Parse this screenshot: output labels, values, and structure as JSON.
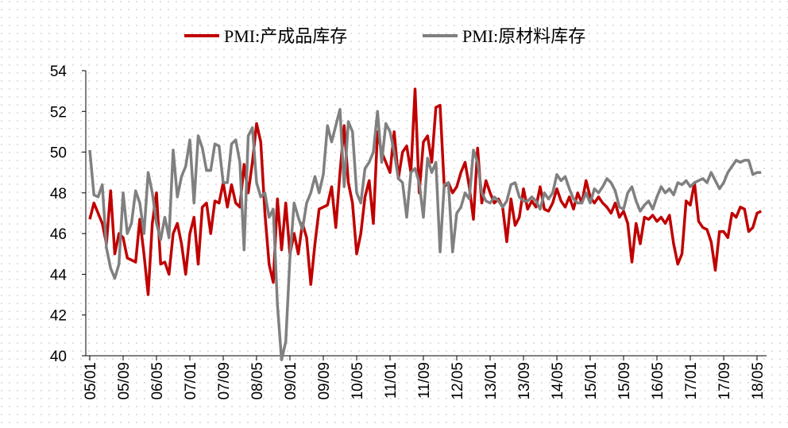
{
  "chart_data": {
    "type": "line",
    "series": [
      {
        "name": "PMI:产成品库存",
        "color": "#c00000",
        "values": [
          46.7,
          47.5,
          47.0,
          46.5,
          45.5,
          48.1,
          45.0,
          46.0,
          45.8,
          44.8,
          44.7,
          44.6,
          46.7,
          45.0,
          43.0,
          46.5,
          48.0,
          44.5,
          44.6,
          44.0,
          46.0,
          46.5,
          45.5,
          44.0,
          46.0,
          46.8,
          44.5,
          47.3,
          47.5,
          46.0,
          47.6,
          47.5,
          48.5,
          47.3,
          48.4,
          47.5,
          47.3,
          49.4,
          48.0,
          49.5,
          51.4,
          50.5,
          47.0,
          44.5,
          43.6,
          47.7,
          45.2,
          47.5,
          45.0,
          46.0,
          45.0,
          46.5,
          45.8,
          43.5,
          45.5,
          47.2,
          47.3,
          47.4,
          48.3,
          46.3,
          49.0,
          51.3,
          48.5,
          47.5,
          45.0,
          46.0,
          47.8,
          48.6,
          46.5,
          51.0,
          50.0,
          49.5,
          49.0,
          51.0,
          48.7,
          50.0,
          50.3,
          49.0,
          53.1,
          48.0,
          50.5,
          50.8,
          49.5,
          52.2,
          52.3,
          48.3,
          48.5,
          48.0,
          48.3,
          49.0,
          49.5,
          48.3,
          46.7,
          50.2,
          47.5,
          48.6,
          48.0,
          47.5,
          47.7,
          47.3,
          45.6,
          47.7,
          46.4,
          46.8,
          48.2,
          47.2,
          47.6,
          47.3,
          48.3,
          47.2,
          47.1,
          47.5,
          48.2,
          47.6,
          47.3,
          47.8,
          47.2,
          48.0,
          47.5,
          48.6,
          47.8,
          47.5,
          47.8,
          47.5,
          47.3,
          47.0,
          47.5,
          46.8,
          47.1,
          46.5,
          44.6,
          46.5,
          45.5,
          46.8,
          46.7,
          46.9,
          46.6,
          46.8,
          46.5,
          46.9,
          45.5,
          44.5,
          45.0,
          47.6,
          47.4,
          48.5,
          46.6,
          46.3,
          46.2,
          45.6,
          44.2,
          46.1,
          46.1,
          45.8,
          47.0,
          46.8,
          47.3,
          47.2,
          46.1,
          46.3,
          47.0,
          47.1
        ]
      },
      {
        "name": "PMI:原材料库存",
        "color": "#808080",
        "values": [
          50.1,
          47.9,
          47.8,
          48.4,
          45.3,
          44.3,
          43.8,
          44.5,
          48.0,
          46.0,
          46.5,
          48.1,
          47.5,
          46.0,
          49.0,
          48.0,
          46.5,
          45.7,
          46.8,
          45.8,
          50.1,
          47.8,
          48.8,
          49.3,
          50.6,
          47.5,
          50.8,
          50.2,
          49.1,
          49.1,
          50.4,
          50.3,
          48.5,
          48.5,
          50.4,
          50.6,
          49.5,
          45.2,
          50.8,
          51.2,
          48.5,
          47.8,
          48.0,
          46.8,
          47.2,
          42.5,
          39.8,
          40.7,
          44.8,
          47.5,
          46.8,
          46.2,
          47.5,
          48.0,
          48.8,
          48.0,
          48.9,
          51.3,
          50.5,
          51.3,
          52.1,
          48.3,
          51.5,
          51.0,
          48.0,
          47.5,
          49.2,
          49.5,
          50.0,
          52.0,
          49.5,
          51.4,
          51.0,
          50.0,
          48.7,
          48.5,
          46.8,
          49.0,
          49.2,
          48.5,
          46.8,
          49.7,
          49.0,
          49.5,
          45.1,
          48.4,
          48.5,
          45.1,
          47.0,
          47.3,
          48.0,
          47.7,
          50.1,
          49.5,
          48.0,
          47.6,
          47.5,
          47.8,
          47.6,
          47.3,
          47.6,
          48.4,
          48.5,
          47.8,
          47.6,
          47.6,
          47.8,
          47.6,
          47.2,
          48.0,
          47.7,
          48.0,
          48.9,
          48.6,
          48.8,
          48.2,
          47.7,
          47.5,
          47.5,
          48.0,
          47.5,
          48.2,
          48.0,
          48.3,
          48.7,
          48.5,
          48.1,
          47.3,
          47.2,
          48.0,
          48.3,
          47.6,
          47.1,
          47.4,
          47.6,
          47.2,
          47.8,
          48.3,
          48.0,
          48.2,
          47.9,
          48.5,
          48.4,
          48.6,
          48.3,
          48.5,
          48.6,
          48.7,
          48.5,
          49.0,
          48.6,
          48.2,
          48.5,
          49.0,
          49.3,
          49.6,
          49.5,
          49.6,
          49.6,
          48.9,
          49.0,
          49.0
        ]
      }
    ],
    "categories": [
      "05/01",
      null,
      null,
      null,
      null,
      null,
      null,
      null,
      "05/09",
      null,
      null,
      null,
      null,
      null,
      null,
      null,
      "06/05",
      null,
      null,
      null,
      null,
      null,
      null,
      null,
      "07/01",
      null,
      null,
      null,
      null,
      null,
      null,
      null,
      "07/09",
      null,
      null,
      null,
      null,
      null,
      null,
      null,
      "08/05",
      null,
      null,
      null,
      null,
      null,
      null,
      null,
      "09/01",
      null,
      null,
      null,
      null,
      null,
      null,
      null,
      "09/09",
      null,
      null,
      null,
      null,
      null,
      null,
      null,
      "10/05",
      null,
      null,
      null,
      null,
      null,
      null,
      null,
      "11/01",
      null,
      null,
      null,
      null,
      null,
      null,
      null,
      "11/09",
      null,
      null,
      null,
      null,
      null,
      null,
      null,
      "12/05",
      null,
      null,
      null,
      null,
      null,
      null,
      null,
      "13/01",
      null,
      null,
      null,
      null,
      null,
      null,
      null,
      "13/09",
      null,
      null,
      null,
      null,
      null,
      null,
      null,
      "14/05",
      null,
      null,
      null,
      null,
      null,
      null,
      null,
      "15/01",
      null,
      null,
      null,
      null,
      null,
      null,
      null,
      "15/09",
      null,
      null,
      null,
      null,
      null,
      null,
      null,
      "16/05",
      null,
      null,
      null,
      null,
      null,
      null,
      null,
      "17/01",
      null,
      null,
      null,
      null,
      null,
      null,
      null,
      "17/09",
      null,
      null,
      null,
      null,
      null,
      null,
      null,
      "18/05",
      null
    ],
    "ylim": [
      40,
      54
    ],
    "yticks": [
      40,
      42,
      44,
      46,
      48,
      50,
      52,
      54
    ],
    "legend": "top"
  }
}
